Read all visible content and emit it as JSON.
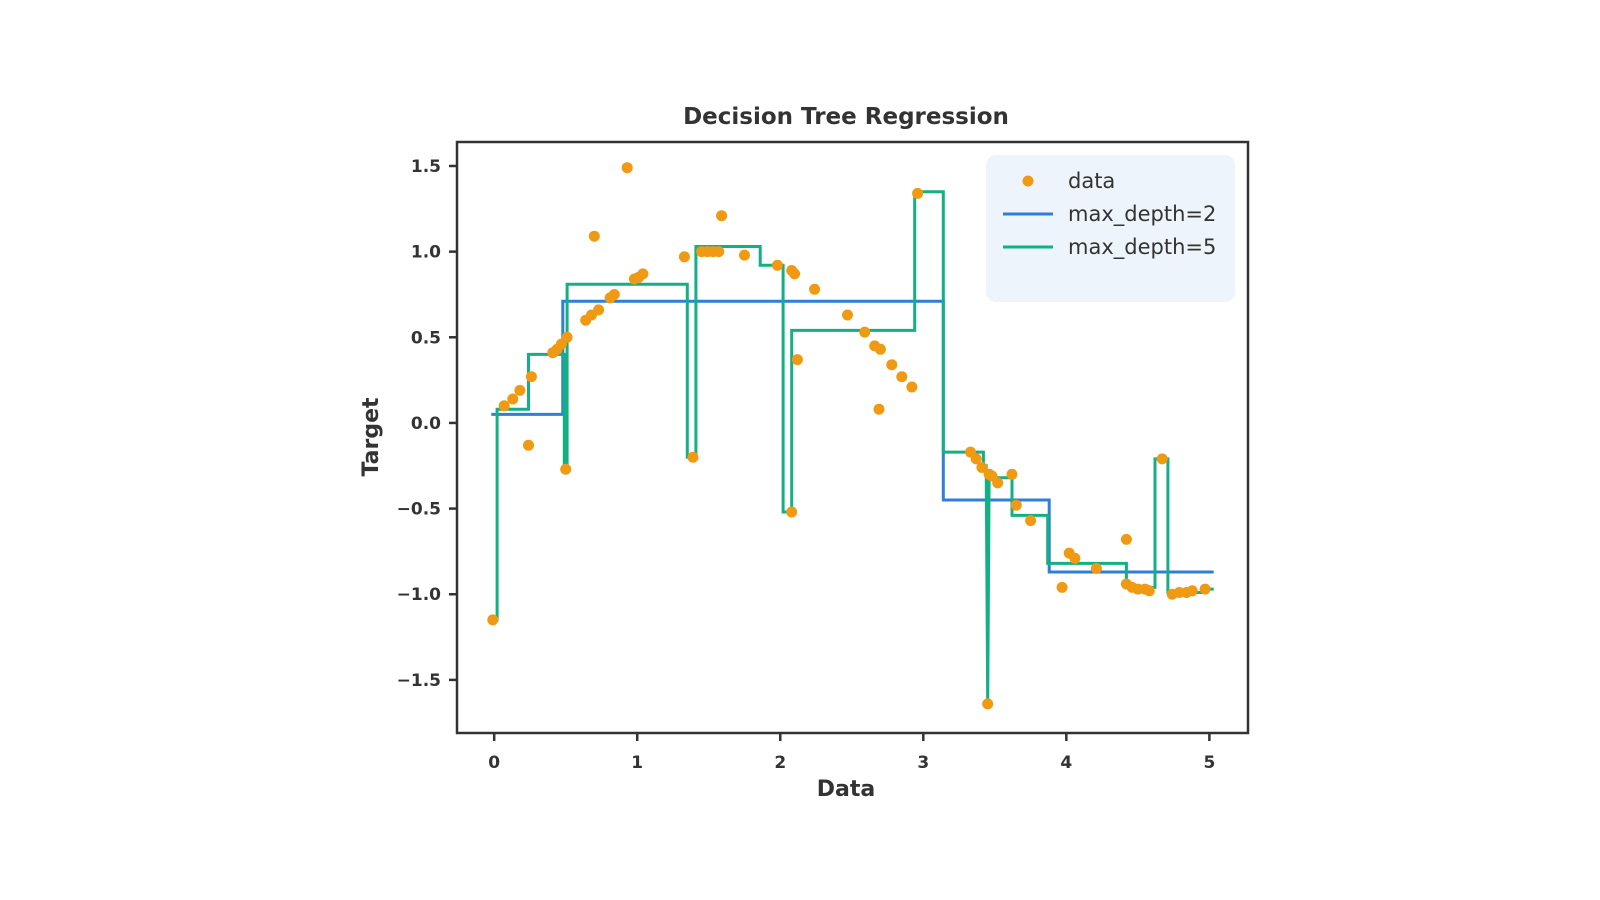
{
  "chart_data": {
    "type": "scatter",
    "title": "Decision Tree Regression",
    "xlabel": "Data",
    "ylabel": "Target",
    "xlim": [
      -0.26,
      5.27
    ],
    "ylim": [
      -1.81,
      1.64
    ],
    "x_ticks": [
      0,
      1,
      2,
      3,
      4,
      5
    ],
    "y_ticks": [
      -1.5,
      -1.0,
      -0.5,
      0.0,
      0.5,
      1.0,
      1.5
    ],
    "x_tick_labels": [
      "0",
      "1",
      "2",
      "3",
      "4",
      "5"
    ],
    "y_tick_labels": [
      "−1.5",
      "−1.0",
      "−0.5",
      "0.0",
      "0.5",
      "1.0",
      "1.5"
    ],
    "grid": false,
    "legend_position": "top-right",
    "legend": [
      "data",
      "max_depth=2",
      "max_depth=5"
    ],
    "colors": {
      "data": "#f09a14",
      "max_depth=2": "#2f7ed8",
      "max_depth=5": "#13b083",
      "frame": "#333333"
    },
    "scatter": {
      "name": "data",
      "points": [
        [
          -0.01,
          -1.15
        ],
        [
          0.07,
          0.1
        ],
        [
          0.13,
          0.14
        ],
        [
          0.18,
          0.19
        ],
        [
          0.24,
          -0.13
        ],
        [
          0.26,
          0.27
        ],
        [
          0.41,
          0.41
        ],
        [
          0.44,
          0.43
        ],
        [
          0.47,
          0.46
        ],
        [
          0.51,
          0.5
        ],
        [
          0.5,
          -0.27
        ],
        [
          0.64,
          0.6
        ],
        [
          0.68,
          0.63
        ],
        [
          0.7,
          1.09
        ],
        [
          0.73,
          0.66
        ],
        [
          0.81,
          0.73
        ],
        [
          0.84,
          0.75
        ],
        [
          0.93,
          1.49
        ],
        [
          0.98,
          0.84
        ],
        [
          1.01,
          0.85
        ],
        [
          1.04,
          0.87
        ],
        [
          1.33,
          0.97
        ],
        [
          1.39,
          -0.2
        ],
        [
          1.45,
          1.0
        ],
        [
          1.49,
          1.0
        ],
        [
          1.53,
          1.0
        ],
        [
          1.57,
          1.0
        ],
        [
          1.59,
          1.21
        ],
        [
          1.75,
          0.98
        ],
        [
          1.98,
          0.92
        ],
        [
          2.08,
          0.89
        ],
        [
          2.1,
          0.87
        ],
        [
          2.08,
          -0.52
        ],
        [
          2.12,
          0.37
        ],
        [
          2.24,
          0.78
        ],
        [
          2.47,
          0.63
        ],
        [
          2.59,
          0.53
        ],
        [
          2.66,
          0.45
        ],
        [
          2.7,
          0.43
        ],
        [
          2.69,
          0.08
        ],
        [
          2.78,
          0.34
        ],
        [
          2.85,
          0.27
        ],
        [
          2.92,
          0.21
        ],
        [
          2.96,
          1.34
        ],
        [
          3.33,
          -0.17
        ],
        [
          3.37,
          -0.21
        ],
        [
          3.41,
          -0.26
        ],
        [
          3.46,
          -0.3
        ],
        [
          3.48,
          -0.31
        ],
        [
          3.52,
          -0.35
        ],
        [
          3.45,
          -1.64
        ],
        [
          3.62,
          -0.3
        ],
        [
          3.65,
          -0.48
        ],
        [
          3.75,
          -0.57
        ],
        [
          3.97,
          -0.96
        ],
        [
          4.02,
          -0.76
        ],
        [
          4.06,
          -0.79
        ],
        [
          4.21,
          -0.85
        ],
        [
          4.42,
          -0.68
        ],
        [
          4.42,
          -0.94
        ],
        [
          4.46,
          -0.96
        ],
        [
          4.5,
          -0.97
        ],
        [
          4.55,
          -0.97
        ],
        [
          4.58,
          -0.98
        ],
        [
          4.67,
          -0.21
        ],
        [
          4.74,
          -1.0
        ],
        [
          4.79,
          -0.99
        ],
        [
          4.84,
          -0.99
        ],
        [
          4.88,
          -0.98
        ],
        [
          4.97,
          -0.97
        ]
      ]
    },
    "series": [
      {
        "name": "max_depth=2",
        "points": [
          [
            -0.02,
            0.05
          ],
          [
            0.48,
            0.05
          ],
          [
            0.48,
            0.71
          ],
          [
            3.14,
            0.71
          ],
          [
            3.14,
            -0.45
          ],
          [
            3.88,
            -0.45
          ],
          [
            3.88,
            -0.87
          ],
          [
            5.03,
            -0.87
          ]
        ]
      },
      {
        "name": "max_depth=5",
        "points": [
          [
            -0.02,
            -1.15
          ],
          [
            0.02,
            -1.15
          ],
          [
            0.02,
            0.08
          ],
          [
            0.24,
            0.08
          ],
          [
            0.24,
            0.4
          ],
          [
            0.49,
            0.4
          ],
          [
            0.49,
            -0.27
          ],
          [
            0.51,
            -0.27
          ],
          [
            0.51,
            0.81
          ],
          [
            1.35,
            0.81
          ],
          [
            1.35,
            -0.2
          ],
          [
            1.41,
            -0.2
          ],
          [
            1.41,
            1.03
          ],
          [
            1.86,
            1.03
          ],
          [
            1.86,
            0.92
          ],
          [
            2.02,
            0.92
          ],
          [
            2.02,
            -0.52
          ],
          [
            2.08,
            -0.52
          ],
          [
            2.08,
            0.54
          ],
          [
            2.94,
            0.54
          ],
          [
            2.94,
            1.35
          ],
          [
            3.14,
            1.35
          ],
          [
            3.14,
            -0.17
          ],
          [
            3.42,
            -0.17
          ],
          [
            3.42,
            -0.25
          ],
          [
            3.44,
            -0.25
          ],
          [
            3.45,
            -1.64
          ],
          [
            3.46,
            -0.32
          ],
          [
            3.62,
            -0.32
          ],
          [
            3.62,
            -0.54
          ],
          [
            3.87,
            -0.54
          ],
          [
            3.87,
            -0.82
          ],
          [
            4.42,
            -0.82
          ],
          [
            4.42,
            -0.96
          ],
          [
            4.62,
            -0.96
          ],
          [
            4.62,
            -0.21
          ],
          [
            4.71,
            -0.21
          ],
          [
            4.71,
            -0.99
          ],
          [
            4.95,
            -0.99
          ],
          [
            4.95,
            -0.97
          ],
          [
            5.03,
            -0.97
          ]
        ]
      }
    ]
  }
}
